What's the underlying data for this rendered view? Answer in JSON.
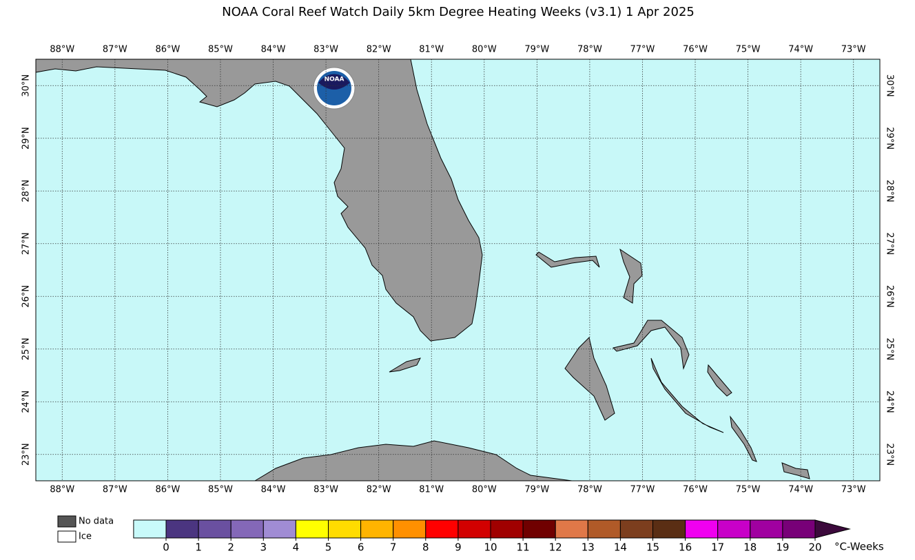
{
  "map": {
    "title": "NOAA Coral Reef Watch Daily 5km Degree Heating Weeks  (v3.1)   1 Apr 2025",
    "lonlim": [
      -88.5,
      -72.5
    ],
    "latlim": [
      22.5,
      30.5
    ],
    "lonticks": [
      {
        "value": -88,
        "label": "88°W"
      },
      {
        "value": -87,
        "label": "87°W"
      },
      {
        "value": -86,
        "label": "86°W"
      },
      {
        "value": -85,
        "label": "85°W"
      },
      {
        "value": -84,
        "label": "84°W"
      },
      {
        "value": -83,
        "label": "83°W"
      },
      {
        "value": -82,
        "label": "82°W"
      },
      {
        "value": -81,
        "label": "81°W"
      },
      {
        "value": -80,
        "label": "80°W"
      },
      {
        "value": -79,
        "label": "79°W"
      },
      {
        "value": -78,
        "label": "78°W"
      },
      {
        "value": -77,
        "label": "77°W"
      },
      {
        "value": -76,
        "label": "76°W"
      },
      {
        "value": -75,
        "label": "75°W"
      },
      {
        "value": -74,
        "label": "74°W"
      },
      {
        "value": -73,
        "label": "73°W"
      }
    ],
    "latticks": [
      {
        "value": 23,
        "label": "23°N"
      },
      {
        "value": 24,
        "label": "24°N"
      },
      {
        "value": 25,
        "label": "25°N"
      },
      {
        "value": 26,
        "label": "26°N"
      },
      {
        "value": 27,
        "label": "27°N"
      },
      {
        "value": 28,
        "label": "28°N"
      },
      {
        "value": 29,
        "label": "29°N"
      },
      {
        "value": 30,
        "label": "30°N"
      }
    ],
    "ocean_color": "#c8f8f8",
    "land_color": "#999999",
    "grid": true,
    "logo_text": "NOAA"
  },
  "legend": {
    "items": [
      {
        "label": "No data",
        "color": "#555555"
      },
      {
        "label": "Ice",
        "color": "#ffffff"
      }
    ]
  },
  "colorbar": {
    "ticks": [
      0,
      1,
      2,
      3,
      4,
      5,
      6,
      7,
      8,
      9,
      10,
      11,
      12,
      13,
      14,
      15,
      16,
      17,
      18,
      19,
      20
    ],
    "colors": [
      "#c8fafa",
      "#4b3580",
      "#6a50a0",
      "#8468b8",
      "#a08cd4",
      "#ffff00",
      "#ffdc00",
      "#ffb400",
      "#ff9000",
      "#ff0000",
      "#d20000",
      "#a00000",
      "#700000",
      "#e07848",
      "#b05a28",
      "#7c3e1e",
      "#5a2e14",
      "#f000f0",
      "#c800c8",
      "#a000a0",
      "#780078"
    ],
    "extend_color": "#3c0a3c",
    "label": "°C-Weeks"
  }
}
